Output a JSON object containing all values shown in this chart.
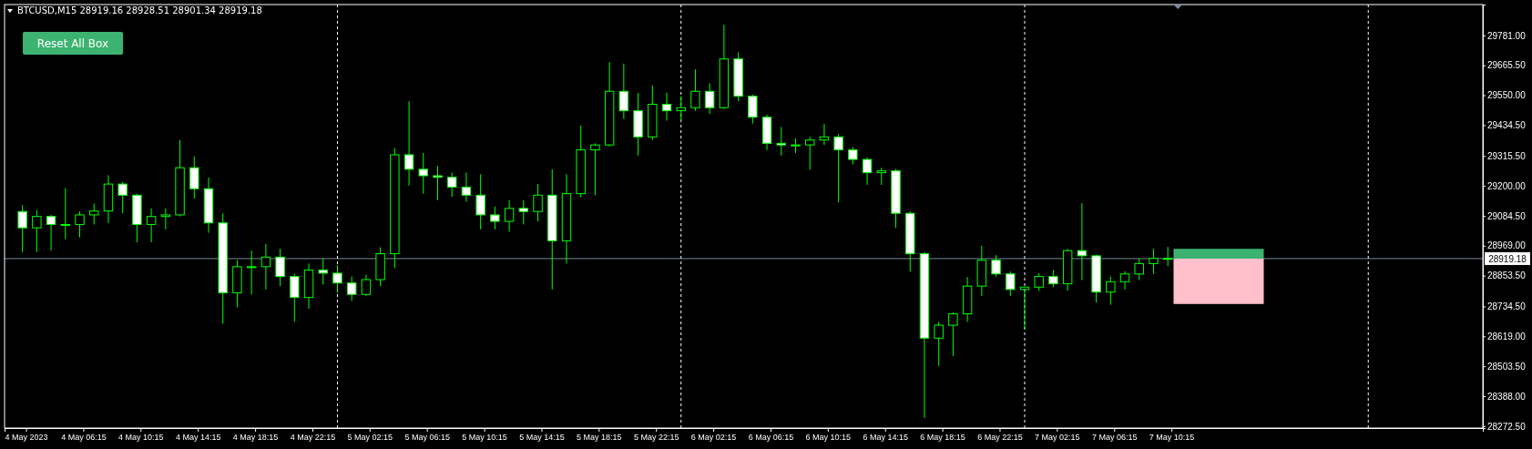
{
  "chart_data": {
    "type": "candlestick",
    "title": "BTCUSD,M15  28919.16 28928.51 28901.34 28919.18",
    "annotations": [
      "Reset All Box"
    ],
    "xlim": [
      "2023-05-04T00:45",
      "2023-05-08T08:00"
    ],
    "xticks": [
      {
        "value": "2023-05-04T02:15",
        "label": "4 May 2023"
      },
      {
        "value": "2023-05-04T06:15",
        "label": "4 May 06:15"
      },
      {
        "value": "2023-05-04T10:15",
        "label": "4 May 10:15"
      },
      {
        "value": "2023-05-04T14:15",
        "label": "4 May 14:15"
      },
      {
        "value": "2023-05-04T18:15",
        "label": "4 May 18:15"
      },
      {
        "value": "2023-05-04T22:15",
        "label": "4 May 22:15"
      },
      {
        "value": "2023-05-05T02:15",
        "label": "5 May 02:15"
      },
      {
        "value": "2023-05-05T06:15",
        "label": "5 May 06:15"
      },
      {
        "value": "2023-05-05T10:15",
        "label": "5 May 10:15"
      },
      {
        "value": "2023-05-05T14:15",
        "label": "5 May 14:15"
      },
      {
        "value": "2023-05-05T18:15",
        "label": "5 May 18:15"
      },
      {
        "value": "2023-05-05T22:15",
        "label": "5 May 22:15"
      },
      {
        "value": "2023-05-06T02:15",
        "label": "6 May 02:15"
      },
      {
        "value": "2023-05-06T06:15",
        "label": "6 May 06:15"
      },
      {
        "value": "2023-05-06T10:15",
        "label": "6 May 10:15"
      },
      {
        "value": "2023-05-06T14:15",
        "label": "6 May 14:15"
      },
      {
        "value": "2023-05-06T18:15",
        "label": "6 May 18:15"
      },
      {
        "value": "2023-05-06T22:15",
        "label": "6 May 22:15"
      },
      {
        "value": "2023-05-07T02:15",
        "label": "7 May 02:15"
      },
      {
        "value": "2023-05-07T06:15",
        "label": "7 May 06:15"
      },
      {
        "value": "2023-05-07T10:15",
        "label": "7 May 10:15"
      }
    ],
    "ylim": [
      28265,
      29900
    ],
    "yticks": [
      {
        "value": 28272.5,
        "label": "28272.50"
      },
      {
        "value": 28388,
        "label": "28388.00"
      },
      {
        "value": 28503.5,
        "label": "28503.50"
      },
      {
        "value": 28619,
        "label": "28619.00"
      },
      {
        "value": 28734.5,
        "label": "28734.50"
      },
      {
        "value": 28853.5,
        "label": "28853.50"
      },
      {
        "value": 28969,
        "label": "28969.00"
      },
      {
        "value": 29084.5,
        "label": "29084.50"
      },
      {
        "value": 29200,
        "label": "29200.00"
      },
      {
        "value": 29315.5,
        "label": "29315.50"
      },
      {
        "value": 29434.5,
        "label": "29434.50"
      },
      {
        "value": 29550,
        "label": "29550.00"
      },
      {
        "value": 29665.5,
        "label": "29665.50"
      },
      {
        "value": 29781,
        "label": "29781.00"
      }
    ],
    "x": [
      "2023-05-04T02:00",
      "2023-05-04T03:00",
      "2023-05-04T04:00",
      "2023-05-04T05:00",
      "2023-05-04T06:00",
      "2023-05-04T07:00",
      "2023-05-04T08:00",
      "2023-05-04T09:00",
      "2023-05-04T10:00",
      "2023-05-04T11:00",
      "2023-05-04T12:00",
      "2023-05-04T13:00",
      "2023-05-04T14:00",
      "2023-05-04T15:00",
      "2023-05-04T16:00",
      "2023-05-04T17:00",
      "2023-05-04T18:00",
      "2023-05-04T19:00",
      "2023-05-04T20:00",
      "2023-05-04T21:00",
      "2023-05-04T22:00",
      "2023-05-04T23:00",
      "2023-05-05T00:00",
      "2023-05-05T01:00",
      "2023-05-05T02:00",
      "2023-05-05T03:00",
      "2023-05-05T04:00",
      "2023-05-05T05:00",
      "2023-05-05T06:00",
      "2023-05-05T07:00",
      "2023-05-05T08:00",
      "2023-05-05T09:00",
      "2023-05-05T10:00",
      "2023-05-05T11:00",
      "2023-05-05T12:00",
      "2023-05-05T13:00",
      "2023-05-05T14:00",
      "2023-05-05T15:00",
      "2023-05-05T16:00",
      "2023-05-05T17:00",
      "2023-05-05T18:00",
      "2023-05-05T19:00",
      "2023-05-05T20:00",
      "2023-05-05T21:00",
      "2023-05-05T22:00",
      "2023-05-05T23:00",
      "2023-05-06T00:00",
      "2023-05-06T01:00",
      "2023-05-06T02:00",
      "2023-05-06T03:00",
      "2023-05-06T04:00",
      "2023-05-06T05:00",
      "2023-05-06T06:00",
      "2023-05-06T07:00",
      "2023-05-06T08:00",
      "2023-05-06T09:00",
      "2023-05-06T10:00",
      "2023-05-06T11:00",
      "2023-05-06T12:00",
      "2023-05-06T13:00",
      "2023-05-06T14:00",
      "2023-05-06T15:00",
      "2023-05-06T16:00",
      "2023-05-06T17:00",
      "2023-05-06T18:00",
      "2023-05-06T19:00",
      "2023-05-06T20:00",
      "2023-05-06T21:00",
      "2023-05-06T22:00",
      "2023-05-06T23:00",
      "2023-05-07T00:00",
      "2023-05-07T01:00",
      "2023-05-07T02:00",
      "2023-05-07T03:00",
      "2023-05-07T04:00",
      "2023-05-07T05:00",
      "2023-05-07T06:00",
      "2023-05-07T07:00",
      "2023-05-07T08:00",
      "2023-05-07T09:00",
      "2023-05-07T10:00"
    ],
    "series": [
      {
        "color": "#00ff00",
        "ohlc": [
          [
            29101,
            29126,
            28944,
            29038
          ],
          [
            29038,
            29107,
            28944,
            29082
          ],
          [
            29082,
            29088,
            28950,
            29051
          ],
          [
            29051,
            29191,
            28994,
            29051
          ],
          [
            29051,
            29101,
            29001,
            29088
          ],
          [
            29088,
            29132,
            29051,
            29103
          ],
          [
            29103,
            29241,
            29057,
            29207
          ],
          [
            29207,
            29215,
            29094,
            29164
          ],
          [
            29164,
            29170,
            28982,
            29051
          ],
          [
            29051,
            29113,
            28982,
            29082
          ],
          [
            29082,
            29113,
            29032,
            29088
          ],
          [
            29088,
            29377,
            29082,
            29270
          ],
          [
            29270,
            29314,
            29151,
            29189
          ],
          [
            29189,
            29232,
            29019,
            29057
          ],
          [
            29057,
            29094,
            28668,
            28787
          ],
          [
            28787,
            28913,
            28731,
            28888
          ],
          [
            28888,
            28950,
            28781,
            28888
          ],
          [
            28888,
            28976,
            28800,
            28925
          ],
          [
            28925,
            28957,
            28813,
            28850
          ],
          [
            28850,
            28860,
            28675,
            28769
          ],
          [
            28769,
            28900,
            28725,
            28875
          ],
          [
            28875,
            28919,
            28819,
            28863
          ],
          [
            28863,
            28894,
            28787,
            28825
          ],
          [
            28825,
            28850,
            28756,
            28781
          ],
          [
            28781,
            28857,
            28775,
            28838
          ],
          [
            28838,
            28963,
            28813,
            28938
          ],
          [
            28938,
            29346,
            28882,
            29320
          ],
          [
            29320,
            29527,
            29201,
            29264
          ],
          [
            29264,
            29327,
            29170,
            29239
          ],
          [
            29239,
            29277,
            29145,
            29233
          ],
          [
            29233,
            29251,
            29157,
            29195
          ],
          [
            29195,
            29251,
            29139,
            29164
          ],
          [
            29164,
            29245,
            29032,
            29088
          ],
          [
            29088,
            29120,
            29032,
            29063
          ],
          [
            29063,
            29145,
            29023,
            29113
          ],
          [
            29113,
            29145,
            29051,
            29101
          ],
          [
            29101,
            29207,
            29063,
            29164
          ],
          [
            29164,
            29264,
            28800,
            28988
          ],
          [
            28988,
            29245,
            28900,
            29170
          ],
          [
            29170,
            29433,
            29157,
            29339
          ],
          [
            29339,
            29364,
            29164,
            29358
          ],
          [
            29358,
            29678,
            29352,
            29565
          ],
          [
            29565,
            29672,
            29459,
            29490
          ],
          [
            29490,
            29559,
            29317,
            29389
          ],
          [
            29389,
            29588,
            29377,
            29515
          ],
          [
            29515,
            29559,
            29452,
            29490
          ],
          [
            29490,
            29546,
            29452,
            29502
          ],
          [
            29502,
            29650,
            29490,
            29565
          ],
          [
            29565,
            29596,
            29477,
            29502
          ],
          [
            29502,
            29822,
            29496,
            29690
          ],
          [
            29690,
            29716,
            29527,
            29546
          ],
          [
            29546,
            29552,
            29440,
            29465
          ],
          [
            29465,
            29475,
            29339,
            29364
          ],
          [
            29364,
            29427,
            29317,
            29358
          ],
          [
            29358,
            29383,
            29327,
            29358
          ],
          [
            29358,
            29389,
            29262,
            29377
          ],
          [
            29377,
            29440,
            29358,
            29389
          ],
          [
            29389,
            29400,
            29136,
            29339
          ],
          [
            29339,
            29350,
            29283,
            29302
          ],
          [
            29302,
            29310,
            29204,
            29251
          ],
          [
            29251,
            29270,
            29204,
            29258
          ],
          [
            29258,
            29265,
            29038,
            29094
          ],
          [
            29094,
            29101,
            28869,
            28938
          ],
          [
            28938,
            28945,
            28304,
            28612
          ],
          [
            28612,
            28675,
            28505,
            28662
          ],
          [
            28662,
            28712,
            28543,
            28706
          ],
          [
            28706,
            28848,
            28675,
            28813
          ],
          [
            28813,
            28969,
            28775,
            28913
          ],
          [
            28913,
            28932,
            28850,
            28860
          ],
          [
            28860,
            28870,
            28775,
            28800
          ],
          [
            28800,
            28810,
            28646,
            28809
          ],
          [
            28809,
            28863,
            28795,
            28850
          ],
          [
            28850,
            28876,
            28809,
            28822
          ],
          [
            28822,
            28957,
            28795,
            28950
          ],
          [
            28950,
            29133,
            28836,
            28930
          ],
          [
            28930,
            28935,
            28750,
            28790
          ],
          [
            28790,
            28850,
            28741,
            28830
          ],
          [
            28830,
            28870,
            28800,
            28860
          ],
          [
            28860,
            28920,
            28836,
            28900
          ],
          [
            28900,
            28957,
            28860,
            28920
          ],
          [
            28920,
            28964,
            28890,
            28919
          ]
        ]
      }
    ],
    "ref_lines": [
      {
        "axis": "y",
        "value": 28919.18,
        "label": "28919.18",
        "color": "#778899"
      },
      {
        "axis": "x",
        "value": "2023-05-05T00:00",
        "color": "#ffffff",
        "line_style": "dashed"
      },
      {
        "axis": "x",
        "value": "2023-05-06T00:00",
        "color": "#ffffff",
        "line_style": "dashed"
      },
      {
        "axis": "x",
        "value": "2023-05-07T00:00",
        "color": "#ffffff",
        "line_style": "dashed"
      },
      {
        "axis": "x",
        "value": "2023-05-08T00:00",
        "color": "#ffffff",
        "line_style": "dashed"
      }
    ],
    "bands": [
      {
        "axis": "y",
        "from": 28919,
        "to": 28957,
        "color": "#3cb371"
      },
      {
        "axis": "y",
        "from": 28744,
        "to": 28919,
        "color": "#ffc0cb"
      }
    ]
  }
}
